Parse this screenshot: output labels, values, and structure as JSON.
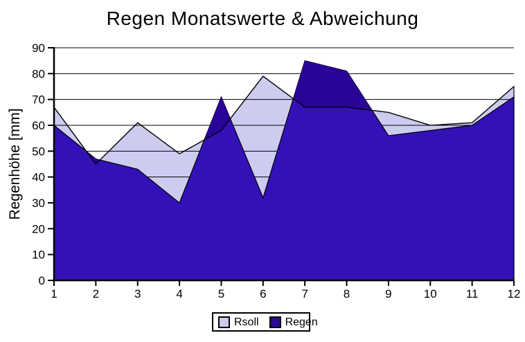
{
  "title": "Regen Monatswerte & Abweichung",
  "chart_data": {
    "type": "area",
    "mode": "overlapping",
    "title": "Regen Monatswerte & Abweichung",
    "xlabel": "",
    "ylabel": "Regenhöhe [mm]",
    "x": [
      1,
      2,
      3,
      4,
      5,
      6,
      7,
      8,
      9,
      10,
      11,
      12
    ],
    "xticks": [
      1,
      2,
      3,
      4,
      5,
      6,
      7,
      8,
      9,
      10,
      11,
      12
    ],
    "yticks": [
      0,
      10,
      20,
      30,
      40,
      50,
      60,
      70,
      80,
      90
    ],
    "ylim": [
      0,
      90
    ],
    "grid": true,
    "legend_position": "bottom-center",
    "series": [
      {
        "name": "Rsoll",
        "color": "#ccccf0",
        "outline_color": "#000000",
        "values": [
          67,
          45,
          61,
          49,
          58,
          79,
          67,
          67,
          65,
          60,
          61,
          75
        ]
      },
      {
        "name": "Regen",
        "color": "#3311b6",
        "deviation_color": "#2a0496",
        "legend_color": "#2b0996",
        "outline_color": "#000000",
        "values": [
          60,
          47,
          43,
          30,
          71,
          32,
          85,
          81,
          56,
          58,
          60,
          71
        ]
      }
    ]
  }
}
